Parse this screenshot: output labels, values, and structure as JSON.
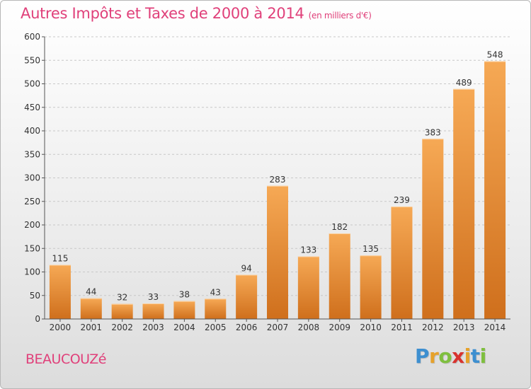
{
  "header": {
    "title": "Autres Impôts et Taxes de 2000 à 2014",
    "unit": "(en milliers d'€)"
  },
  "footer": {
    "place": "BEAUCOUZé",
    "logo": {
      "letters": [
        "P",
        "r",
        "o",
        "x",
        "i",
        "t",
        "i"
      ],
      "colors": [
        "#3d8fd0",
        "#e6a22b",
        "#7fbf3f",
        "#d8332f",
        "#e6a22b",
        "#3d8fd0",
        "#7fbf3f"
      ]
    }
  },
  "chart_data": {
    "type": "bar",
    "title": "Autres Impôts et Taxes de 2000 à 2014",
    "subtitle": "(en milliers d'€)",
    "categories": [
      "2000",
      "2001",
      "2002",
      "2003",
      "2004",
      "2005",
      "2006",
      "2007",
      "2008",
      "2009",
      "2010",
      "2011",
      "2012",
      "2013",
      "2014"
    ],
    "values": [
      115,
      44,
      32,
      33,
      38,
      43,
      94,
      283,
      133,
      182,
      135,
      239,
      383,
      489,
      548
    ],
    "ylim": [
      0,
      600
    ],
    "yticks": [
      0,
      50,
      100,
      150,
      200,
      250,
      300,
      350,
      400,
      450,
      500,
      550,
      600
    ],
    "grid": true,
    "bar_color": "#f09a3e",
    "bar_color_dark": "#d2701f"
  }
}
